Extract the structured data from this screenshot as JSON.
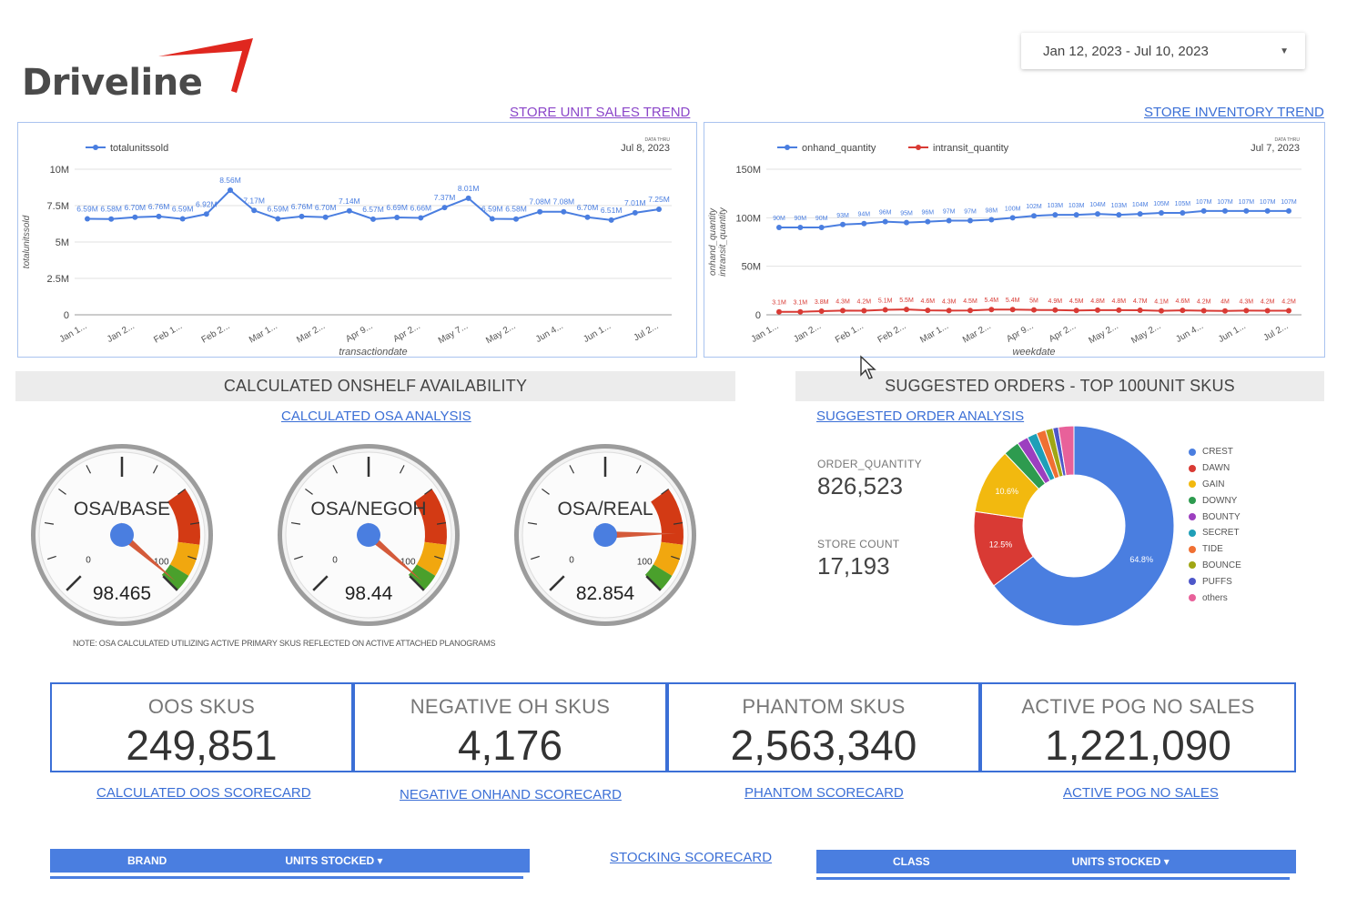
{
  "header": {
    "logo_text": "Driveline",
    "date_range": "Jan 12, 2023 - Jul 10, 2023",
    "colors": {
      "accent": "#3b6fd6",
      "logo_red": "#e0271f"
    }
  },
  "links": {
    "store_unit_sales_trend": "STORE UNIT SALES TREND",
    "store_inventory_trend": "STORE INVENTORY TREND",
    "calculated_osa_analysis": "CALCULATED OSA ANALYSIS",
    "suggested_order_analysis": "SUGGESTED ORDER ANALYSIS",
    "calculated_oos_scorecard": "CALCULATED OOS SCORECARD",
    "negative_onhand_scorecard": "NEGATIVE ONHAND SCORECARD",
    "phantom_scorecard": "PHANTOM SCORECARD",
    "active_pog_no_sales": "ACTIVE POG NO SALES",
    "stocking_scorecard": "STOCKING SCORECARD"
  },
  "chart_data": [
    {
      "type": "line",
      "data_thru_label": "DATA THRU",
      "data_thru": "Jul 8, 2023",
      "xlabel": "transactiondate",
      "ylabel": "totalunitssold",
      "ylim": [
        0,
        10000000
      ],
      "yticks": [
        "10M",
        "7.5M",
        "5M",
        "2.5M",
        "0"
      ],
      "xticks": [
        "Jan 1...",
        "Jan 2...",
        "Feb 1...",
        "Feb 2...",
        "Mar 1...",
        "Mar 2...",
        "Apr 9...",
        "Apr 2...",
        "May 7...",
        "May 2...",
        "Jun 4...",
        "Jun 1...",
        "Jul 2..."
      ],
      "legend": "top-left",
      "grid": true,
      "series": [
        {
          "name": "totalunitssold",
          "color": "#4a7ee0",
          "values": [
            6590000,
            6580000,
            6700000,
            6760000,
            6590000,
            6920000,
            8560000,
            7170000,
            6590000,
            6760000,
            6700000,
            7140000,
            6570000,
            6690000,
            6660000,
            7370000,
            8010000,
            6590000,
            6580000,
            7080000,
            7080000,
            6700000,
            6510000,
            7010000,
            7250000
          ],
          "labels": [
            "6.59M",
            "6.58M",
            "6.70M",
            "6.76M",
            "6.59M",
            "6.92M",
            "8.56M",
            "7.17M",
            "6.59M",
            "6.76M",
            "6.70M",
            "7.14M",
            "6.57M",
            "6.69M",
            "6.66M",
            "7.37M",
            "8.01M",
            "6.59M",
            "6.58M",
            "7.08M",
            "7.08M",
            "6.70M",
            "6.51M",
            "7.01M",
            "7.25M"
          ]
        }
      ]
    },
    {
      "type": "line",
      "data_thru_label": "DATA THRU",
      "data_thru": "Jul 7, 2023",
      "xlabel": "weekdate",
      "ylabel": "onhand_quantity | intransit_quantity",
      "ylim": [
        0,
        150000000
      ],
      "yticks": [
        "150M",
        "100M",
        "50M",
        "0"
      ],
      "xticks": [
        "Jan 1...",
        "Jan 2...",
        "Feb 1...",
        "Feb 2...",
        "Mar 1...",
        "Mar 2...",
        "Apr 9...",
        "Apr 2...",
        "May 2...",
        "May 2...",
        "Jun 4...",
        "Jun 1...",
        "Jul 2..."
      ],
      "legend": "top-left",
      "grid": true,
      "series": [
        {
          "name": "onhand_quantity",
          "color": "#4a7ee0",
          "values": [
            90000000,
            90000000,
            90000000,
            93000000,
            94000000,
            96000000,
            95000000,
            96000000,
            97000000,
            97000000,
            98000000,
            100000000,
            102000000,
            103000000,
            103000000,
            104000000,
            103000000,
            104000000,
            105000000,
            105000000,
            107000000,
            107000000,
            107000000,
            107000000,
            107000000
          ],
          "labels": [
            "90M",
            "90M",
            "90M",
            "93M",
            "94M",
            "96M",
            "95M",
            "96M",
            "97M",
            "97M",
            "98M",
            "100M",
            "102M",
            "103M",
            "103M",
            "104M",
            "103M",
            "104M",
            "105M",
            "105M",
            "107M",
            "107M",
            "107M",
            "107M",
            "107M"
          ]
        },
        {
          "name": "intransit_quantity",
          "color": "#d93a34",
          "values": [
            3100000,
            3100000,
            3800000,
            4300000,
            4200000,
            5100000,
            5500000,
            4600000,
            4300000,
            4500000,
            5400000,
            5400000,
            5000000,
            4900000,
            4500000,
            4800000,
            4800000,
            4700000,
            4100000,
            4600000,
            4200000,
            4000000,
            4300000,
            4200000,
            4200000
          ],
          "labels": [
            "3.1M",
            "3.1M",
            "3.8M",
            "4.3M",
            "4.2M",
            "5.1M",
            "5.5M",
            "4.6M",
            "4.3M",
            "4.5M",
            "5.4M",
            "5.4M",
            "5M",
            "4.9M",
            "4.5M",
            "4.8M",
            "4.8M",
            "4.7M",
            "4.1M",
            "4.6M",
            "4.2M",
            "4M",
            "4.3M",
            "4.2M",
            "4.2M"
          ]
        }
      ]
    },
    {
      "type": "pie",
      "donut": true,
      "legend": "right",
      "slices": [
        {
          "name": "CREST",
          "value": 64.8,
          "label": "64.8%",
          "color": "#4a7ee0"
        },
        {
          "name": "DAWN",
          "value": 12.5,
          "label": "12.5%",
          "color": "#d93a34"
        },
        {
          "name": "GAIN",
          "value": 10.6,
          "label": "10.6%",
          "color": "#f2b90f"
        },
        {
          "name": "DOWNY",
          "value": 2.6,
          "label": "",
          "color": "#2e9b4f"
        },
        {
          "name": "BOUNTY",
          "value": 1.8,
          "label": "",
          "color": "#9c3fbf"
        },
        {
          "name": "SECRET",
          "value": 1.6,
          "label": "",
          "color": "#1f9fb8"
        },
        {
          "name": "TIDE",
          "value": 1.5,
          "label": "",
          "color": "#f07033"
        },
        {
          "name": "BOUNCE",
          "value": 1.2,
          "label": "",
          "color": "#a0a614"
        },
        {
          "name": "PUFFS",
          "value": 0.9,
          "label": "",
          "color": "#4d57c9"
        },
        {
          "name": "others",
          "value": 2.5,
          "label": "",
          "color": "#e8619a"
        }
      ]
    }
  ],
  "osa": {
    "header": "CALCULATED ONSHELF AVAILABILITY",
    "note": "NOTE: OSA CALCULATED UTILIZING ACTIVE PRIMARY SKUS REFLECTED ON ACTIVE ATTACHED PLANOGRAMS",
    "gauges": [
      {
        "label": "OSA/BASE",
        "value": "98.465",
        "level": 98.465,
        "min": "0",
        "max": "100"
      },
      {
        "label": "OSA/NEGOH",
        "value": "98.44",
        "level": 98.44,
        "min": "0",
        "max": "100"
      },
      {
        "label": "OSA/REAL",
        "value": "82.854",
        "level": 82.854,
        "min": "0",
        "max": "100"
      }
    ]
  },
  "orders": {
    "header": "SUGGESTED ORDERS - TOP 100UNIT SKUS",
    "order_quantity_label": "ORDER_QUANTITY",
    "order_quantity": "826,523",
    "store_count_label": "STORE COUNT",
    "store_count": "17,193"
  },
  "kpis": [
    {
      "title": "OOS SKUS",
      "value": "249,851"
    },
    {
      "title": "NEGATIVE OH SKUS",
      "value": "4,176"
    },
    {
      "title": "PHANTOM SKUS",
      "value": "2,563,340"
    },
    {
      "title": "ACTIVE POG NO SALES",
      "value": "1,221,090"
    }
  ],
  "tables": {
    "left": {
      "col1": "BRAND",
      "col2": "UNITS STOCKED ▾"
    },
    "right": {
      "col1": "CLASS",
      "col2": "UNITS STOCKED ▾"
    }
  }
}
